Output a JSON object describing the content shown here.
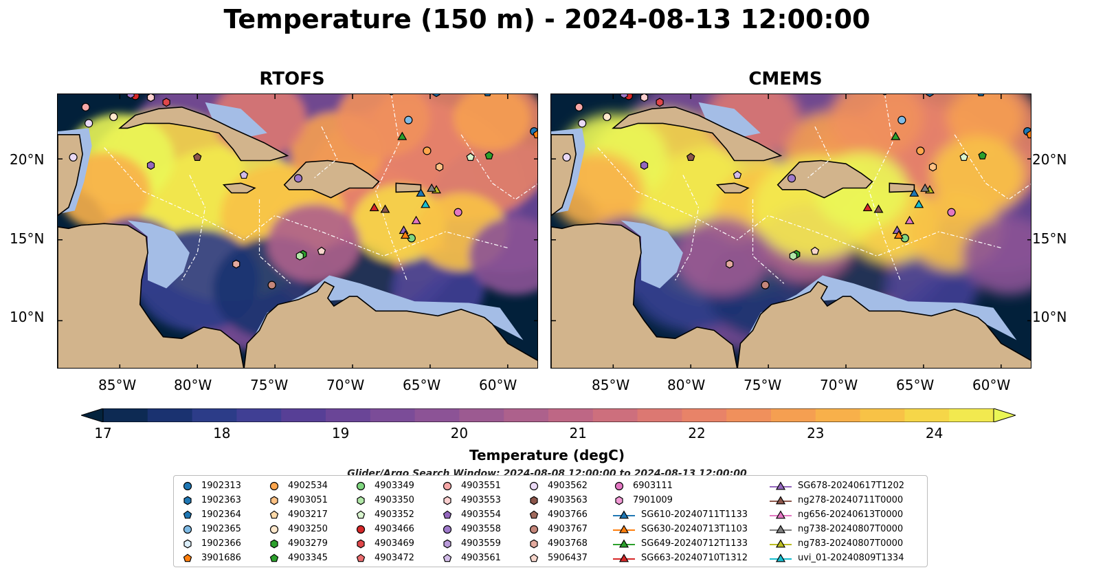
{
  "title": "Temperature (150 m) - 2024-08-13 12:00:00",
  "panels": [
    {
      "title": "RTOFS"
    },
    {
      "title": "CMEMS"
    }
  ],
  "map": {
    "lon_range": [
      -89,
      -58
    ],
    "lat_range": [
      7,
      24
    ],
    "lat_ticks": [
      "20°N",
      "15°N",
      "10°N"
    ],
    "lon_ticks": [
      "85°W",
      "80°W",
      "75°W",
      "70°W",
      "65°W",
      "60°W"
    ],
    "colors": {
      "ocean_deep": "#02203a",
      "land": "#d2b48c",
      "shelf": "#a4bde6"
    }
  },
  "colorbar": {
    "label": "Temperature (degC)",
    "ticks": [
      "17",
      "18",
      "19",
      "20",
      "21",
      "22",
      "23",
      "24"
    ],
    "min": 17,
    "max": 24.5,
    "step": 0.25,
    "colors": [
      "#04233d",
      "#0d2a53",
      "#1a3270",
      "#2c3c88",
      "#403f94",
      "#573f96",
      "#6a4597",
      "#7b4c98",
      "#8c5396",
      "#9c5a91",
      "#ad618c",
      "#be6785",
      "#cd6f7d",
      "#dc7872",
      "#e88368",
      "#f0905c",
      "#f59f51",
      "#f8b04a",
      "#f8c246",
      "#f6d648",
      "#f2e94f",
      "#eaf656"
    ],
    "extend": "both"
  },
  "search_window": "Glider/Argo Search Window: 2024-08-08 12:00:00 to 2024-08-13 12:00:00",
  "legend": {
    "columns": [
      [
        {
          "label": "1902313",
          "marker": "circle",
          "color": "#1f77b4"
        },
        {
          "label": "1902363",
          "marker": "hexagon",
          "color": "#1f77b4"
        },
        {
          "label": "1902364",
          "marker": "pentagon",
          "color": "#1f77b4"
        },
        {
          "label": "1902365",
          "marker": "circle",
          "color": "#7fbbe6"
        },
        {
          "label": "1902366",
          "marker": "hexagon",
          "color": "#dbeefa"
        },
        {
          "label": "3901686",
          "marker": "pentagon",
          "color": "#ff7f0e"
        }
      ],
      [
        {
          "label": "4902534",
          "marker": "circle",
          "color": "#ffa64d"
        },
        {
          "label": "4903051",
          "marker": "hexagon",
          "color": "#ffc285"
        },
        {
          "label": "4903217",
          "marker": "pentagon",
          "color": "#ffd9a8"
        },
        {
          "label": "4903250",
          "marker": "circle",
          "color": "#ffe8cc"
        },
        {
          "label": "4903279",
          "marker": "hexagon",
          "color": "#2ca02c"
        },
        {
          "label": "4903345",
          "marker": "pentagon",
          "color": "#2ca02c"
        }
      ],
      [
        {
          "label": "4903349",
          "marker": "circle",
          "color": "#7fd67f"
        },
        {
          "label": "4903350",
          "marker": "hexagon",
          "color": "#b2e8a8"
        },
        {
          "label": "4903352",
          "marker": "pentagon",
          "color": "#d9f5cf"
        },
        {
          "label": "4903466",
          "marker": "circle",
          "color": "#d62728"
        },
        {
          "label": "4903469",
          "marker": "hexagon",
          "color": "#e0474a"
        },
        {
          "label": "4903472",
          "marker": "pentagon",
          "color": "#eb6d6f"
        }
      ],
      [
        {
          "label": "4903551",
          "marker": "circle",
          "color": "#f7a8a8"
        },
        {
          "label": "4903553",
          "marker": "hexagon",
          "color": "#fcd0d0"
        },
        {
          "label": "4903554",
          "marker": "pentagon",
          "color": "#9467bd"
        },
        {
          "label": "4903558",
          "marker": "circle",
          "color": "#9f7acb"
        },
        {
          "label": "4903559",
          "marker": "hexagon",
          "color": "#b99ad9"
        },
        {
          "label": "4903561",
          "marker": "pentagon",
          "color": "#d2bce8"
        }
      ],
      [
        {
          "label": "4903562",
          "marker": "circle",
          "color": "#ead9f5"
        },
        {
          "label": "4903563",
          "marker": "hexagon",
          "color": "#8c564b"
        },
        {
          "label": "4903766",
          "marker": "pentagon",
          "color": "#a0695c"
        },
        {
          "label": "4903767",
          "marker": "circle",
          "color": "#c4867a"
        },
        {
          "label": "4903768",
          "marker": "hexagon",
          "color": "#e3aa9e"
        },
        {
          "label": "5906437",
          "marker": "pentagon",
          "color": "#f7d6cc"
        }
      ],
      [
        {
          "label": "6903111",
          "marker": "circle",
          "color": "#e377c2"
        },
        {
          "label": "7901009",
          "marker": "hexagon",
          "color": "#f29ad6"
        },
        {
          "label": "SG610-20240711T1133",
          "marker": "triangle",
          "color": "#1f77b4"
        },
        {
          "label": "SG630-20240713T1103",
          "marker": "triangle",
          "color": "#ff7f0e"
        },
        {
          "label": "SG649-20240712T1133",
          "marker": "triangle",
          "color": "#2ca02c"
        },
        {
          "label": "SG663-20240710T1312",
          "marker": "triangle",
          "color": "#d62728"
        }
      ],
      [
        {
          "label": "SG678-20240617T1202",
          "marker": "triangle",
          "color": "#9467bd"
        },
        {
          "label": "ng278-20240711T0000",
          "marker": "triangle",
          "color": "#8c564b"
        },
        {
          "label": "ng656-20240613T0000",
          "marker": "triangle",
          "color": "#e377c2"
        },
        {
          "label": "ng738-20240807T0000",
          "marker": "triangle",
          "color": "#7f7f7f"
        },
        {
          "label": "ng783-20240807T0000",
          "marker": "triangle",
          "color": "#bcbd22"
        },
        {
          "label": "uvi_01-20240809T1334",
          "marker": "triangle",
          "color": "#17becf"
        }
      ]
    ]
  },
  "markers": [
    {
      "lon": -87.2,
      "lat": 23.2,
      "marker": "circle",
      "color": "#f7a8a8"
    },
    {
      "lon": -87.0,
      "lat": 22.2,
      "marker": "circle",
      "color": "#ead9f5"
    },
    {
      "lon": -85.4,
      "lat": 22.6,
      "marker": "circle",
      "color": "#ffe8cc"
    },
    {
      "lon": -84.0,
      "lat": 23.9,
      "marker": "circle",
      "color": "#d62728"
    },
    {
      "lon": -84.3,
      "lat": 24.0,
      "marker": "hexagon",
      "color": "#9f7acb"
    },
    {
      "lon": -83.0,
      "lat": 23.8,
      "marker": "hexagon",
      "color": "#fcd0d0"
    },
    {
      "lon": -82.0,
      "lat": 23.5,
      "marker": "hexagon",
      "color": "#e0474a"
    },
    {
      "lon": -88.0,
      "lat": 20.1,
      "marker": "circle",
      "color": "#ead9f5"
    },
    {
      "lon": -83.0,
      "lat": 19.6,
      "marker": "hexagon",
      "color": "#9467bd"
    },
    {
      "lon": -80.0,
      "lat": 20.1,
      "marker": "pentagon",
      "color": "#8c564b"
    },
    {
      "lon": -77.0,
      "lat": 19.0,
      "marker": "pentagon",
      "color": "#d2bce8"
    },
    {
      "lon": -73.5,
      "lat": 18.8,
      "marker": "circle",
      "color": "#9f7acb"
    },
    {
      "lon": -66.4,
      "lat": 22.4,
      "marker": "circle",
      "color": "#7fbbe6"
    },
    {
      "lon": -65.2,
      "lat": 20.5,
      "marker": "circle",
      "color": "#ffa64d"
    },
    {
      "lon": -64.4,
      "lat": 19.5,
      "marker": "hexagon",
      "color": "#ffc285"
    },
    {
      "lon": -62.4,
      "lat": 20.1,
      "marker": "pentagon",
      "color": "#d9f5cf"
    },
    {
      "lon": -61.2,
      "lat": 20.2,
      "marker": "pentagon",
      "color": "#2ca02c"
    },
    {
      "lon": -58.3,
      "lat": 21.7,
      "marker": "circle",
      "color": "#1f77b4"
    },
    {
      "lon": -58.1,
      "lat": 21.5,
      "marker": "pentagon",
      "color": "#ff7f0e"
    },
    {
      "lon": -64.6,
      "lat": 24.1,
      "marker": "hexagon",
      "color": "#1f77b4"
    },
    {
      "lon": -61.3,
      "lat": 24.1,
      "marker": "pentagon",
      "color": "#1f77b4"
    },
    {
      "lon": -67.5,
      "lat": 24.2,
      "marker": "hexagon",
      "color": "#dbeefa"
    },
    {
      "lon": -63.2,
      "lat": 16.7,
      "marker": "circle",
      "color": "#e377c2"
    },
    {
      "lon": -66.2,
      "lat": 15.1,
      "marker": "circle",
      "color": "#7fd67f"
    },
    {
      "lon": -73.2,
      "lat": 14.1,
      "marker": "hexagon",
      "color": "#2ca02c"
    },
    {
      "lon": -73.4,
      "lat": 14.0,
      "marker": "hexagon",
      "color": "#b2e8a8"
    },
    {
      "lon": -72.0,
      "lat": 14.3,
      "marker": "pentagon",
      "color": "#f7d6cc"
    },
    {
      "lon": -77.5,
      "lat": 13.5,
      "marker": "hexagon",
      "color": "#e3aa9e"
    },
    {
      "lon": -75.2,
      "lat": 12.2,
      "marker": "circle",
      "color": "#c4867a"
    },
    {
      "lon": -68.6,
      "lat": 17.0,
      "marker": "triangle",
      "color": "#d62728"
    },
    {
      "lon": -67.9,
      "lat": 16.9,
      "marker": "triangle",
      "color": "#8c564b"
    },
    {
      "lon": -66.8,
      "lat": 21.4,
      "marker": "triangle",
      "color": "#2ca02c"
    },
    {
      "lon": -66.7,
      "lat": 15.6,
      "marker": "triangle",
      "color": "#9467bd"
    },
    {
      "lon": -66.6,
      "lat": 15.3,
      "marker": "triangle",
      "color": "#ff7f0e"
    },
    {
      "lon": -65.9,
      "lat": 16.2,
      "marker": "triangle",
      "color": "#e377c2"
    },
    {
      "lon": -65.6,
      "lat": 17.9,
      "marker": "triangle",
      "color": "#1f77b4"
    },
    {
      "lon": -65.3,
      "lat": 17.2,
      "marker": "triangle",
      "color": "#17becf"
    },
    {
      "lon": -64.6,
      "lat": 18.1,
      "marker": "triangle",
      "color": "#bcbd22"
    },
    {
      "lon": -64.9,
      "lat": 18.2,
      "marker": "triangle",
      "color": "#7f7f7f"
    }
  ]
}
